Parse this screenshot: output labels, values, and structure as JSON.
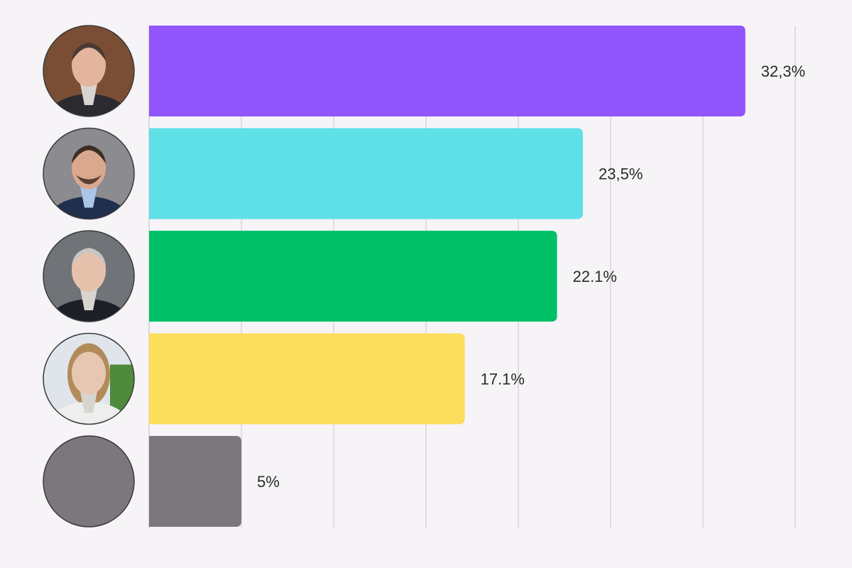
{
  "chart_data": {
    "type": "bar",
    "orientation": "horizontal",
    "title": "",
    "xlabel": "",
    "ylabel": "",
    "xlim": [
      0,
      35
    ],
    "grid": true,
    "legend": "none",
    "categories": [
      "",
      "",
      "",
      "",
      ""
    ],
    "values": [
      32.3,
      23.5,
      22.1,
      17.1,
      5
    ],
    "value_labels": [
      "32,3%",
      "23,5%",
      "22.1%",
      "17.1%",
      "5%"
    ],
    "colors": [
      "#9155fd",
      "#5fe0e6",
      "#00c068",
      "#fddd5c",
      "#7c777c"
    ],
    "avatars": [
      "person-photo",
      "person-photo",
      "person-photo",
      "person-photo",
      "gray-placeholder"
    ]
  }
}
